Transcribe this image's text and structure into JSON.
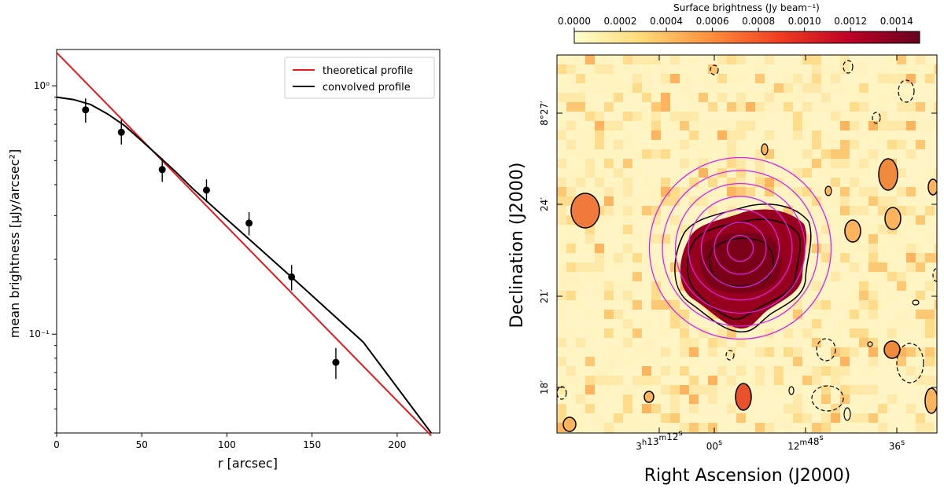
{
  "chart_data": [
    {
      "type": "scatter",
      "title": "",
      "xlabel": "r [arcsec]",
      "ylabel": "mean brightness [μJy/arcsec²]",
      "xlim": [
        0,
        225
      ],
      "ylim": [
        0.04,
        1.4
      ],
      "yscale": "log",
      "xticks": [
        "0",
        "50",
        "100",
        "150",
        "200"
      ],
      "yticks": [
        "10⁻¹",
        "10⁰"
      ],
      "legend": {
        "placement": "top-right",
        "entries": [
          {
            "label": "theoretical profile",
            "color": "#e41a1c"
          },
          {
            "label": "convolved profile",
            "color": "#000000"
          }
        ]
      },
      "points": [
        {
          "x": 17,
          "y": 0.8,
          "err_lo": 0.09,
          "err_hi": 0.09
        },
        {
          "x": 38,
          "y": 0.65,
          "err_lo": 0.07,
          "err_hi": 0.08
        },
        {
          "x": 62,
          "y": 0.46,
          "err_lo": 0.05,
          "err_hi": 0.05
        },
        {
          "x": 88,
          "y": 0.38,
          "err_lo": 0.04,
          "err_hi": 0.04
        },
        {
          "x": 113,
          "y": 0.28,
          "err_lo": 0.03,
          "err_hi": 0.03
        },
        {
          "x": 138,
          "y": 0.17,
          "err_lo": 0.02,
          "err_hi": 0.02
        },
        {
          "x": 164,
          "y": 0.077,
          "err_lo": 0.011,
          "err_hi": 0.011
        }
      ],
      "theoretical_line": {
        "x": [
          0,
          220
        ],
        "y": [
          1.36,
          0.039
        ]
      },
      "convolved_line": {
        "x": [
          0,
          10,
          20,
          30,
          40,
          50,
          60,
          70,
          80,
          100,
          140,
          180,
          220
        ],
        "y": [
          0.9,
          0.88,
          0.84,
          0.77,
          0.69,
          0.6,
          0.52,
          0.45,
          0.385,
          0.29,
          0.165,
          0.093,
          0.04
        ]
      }
    },
    {
      "type": "heatmap",
      "title": "",
      "colorbar": {
        "label": "Surface brightness (Jy beam⁻¹)",
        "range": [
          0,
          0.0015
        ],
        "ticks": [
          "0.0000",
          "0.0002",
          "0.0004",
          "0.0006",
          "0.0008",
          "0.0010",
          "0.0012",
          "0.0014"
        ],
        "colors": [
          "#ffffcc",
          "#fed976",
          "#fd8d3c",
          "#f03b20",
          "#bd0026",
          "#67001f"
        ]
      },
      "xlabel": "Right Ascension (J2000)",
      "ylabel": "Declination (J2000)",
      "xticks": [
        {
          "main": "3",
          "sup1": "h",
          "mid": "13",
          "sup2": "m",
          "sec": "12",
          "sup3": "s"
        },
        {
          "main": "00",
          "sup3": "s"
        },
        {
          "main": "12",
          "sup2": "m",
          "sec": "48",
          "sup3": "s"
        },
        {
          "main": "36",
          "sup3": "s"
        }
      ],
      "yticks": [
        "8°27′",
        "24′",
        "21′",
        "18′"
      ],
      "source_center": {
        "ra_offset_arcmin": 0.0,
        "dec_offset_arcmin": 0.0
      },
      "ring_count": 7,
      "ring_color": "#e020e0"
    }
  ]
}
